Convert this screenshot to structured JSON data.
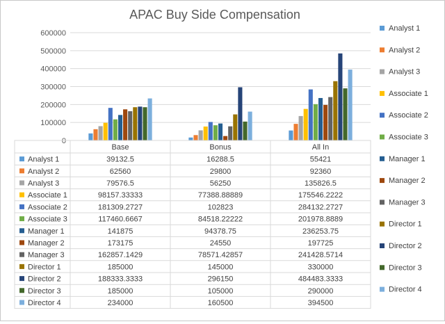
{
  "chart_data": {
    "type": "bar",
    "title": "APAC Buy Side Compensation",
    "categories": [
      "Base",
      "Bonus",
      "All In"
    ],
    "ylim": [
      0,
      600000
    ],
    "yticks": [
      0,
      100000,
      200000,
      300000,
      400000,
      500000,
      600000
    ],
    "grid": true,
    "legend_position": "right",
    "data_table": true,
    "series": [
      {
        "name": "Analyst 1",
        "color": "#5b9bd5",
        "values": [
          39132.5,
          16288.5,
          55421
        ],
        "labels": [
          "39132.5",
          "16288.5",
          "55421"
        ]
      },
      {
        "name": "Analyst 2",
        "color": "#ed7d31",
        "values": [
          62560,
          29800,
          92360
        ],
        "labels": [
          "62560",
          "29800",
          "92360"
        ]
      },
      {
        "name": "Analyst 3",
        "color": "#a5a5a5",
        "values": [
          79576.5,
          56250,
          135826.5
        ],
        "labels": [
          "79576.5",
          "56250",
          "135826.5"
        ]
      },
      {
        "name": "Associate 1",
        "color": "#ffc000",
        "values": [
          98157.33333,
          77388.88889,
          175546.2222
        ],
        "labels": [
          "98157.33333",
          "77388.88889",
          "175546.2222"
        ]
      },
      {
        "name": "Associate 2",
        "color": "#4472c4",
        "values": [
          181309.2727,
          102823,
          284132.2727
        ],
        "labels": [
          "181309.2727",
          "102823",
          "284132.2727"
        ]
      },
      {
        "name": "Associate 3",
        "color": "#70ad47",
        "values": [
          117460.6667,
          84518.22222,
          201978.8889
        ],
        "labels": [
          "117460.6667",
          "84518.22222",
          "201978.8889"
        ]
      },
      {
        "name": "Manager 1",
        "color": "#255e91",
        "values": [
          141875,
          94378.75,
          236253.75
        ],
        "labels": [
          "141875",
          "94378.75",
          "236253.75"
        ]
      },
      {
        "name": "Manager 2",
        "color": "#9e480e",
        "values": [
          173175,
          24550,
          197725
        ],
        "labels": [
          "173175",
          "24550",
          "197725"
        ]
      },
      {
        "name": "Manager 3",
        "color": "#636363",
        "values": [
          162857.1429,
          78571.42857,
          241428.5714
        ],
        "labels": [
          "162857.1429",
          "78571.42857",
          "241428.5714"
        ]
      },
      {
        "name": "Director 1",
        "color": "#997300",
        "values": [
          185000,
          145000,
          330000
        ],
        "labels": [
          "185000",
          "145000",
          "330000"
        ]
      },
      {
        "name": "Director 2",
        "color": "#264478",
        "values": [
          188333.3333,
          296150,
          484483.3333
        ],
        "labels": [
          "188333.3333",
          "296150",
          "484483.3333"
        ]
      },
      {
        "name": "Director 3",
        "color": "#43682b",
        "values": [
          185000,
          105000,
          290000
        ],
        "labels": [
          "185000",
          "105000",
          "290000"
        ]
      },
      {
        "name": "Director 4",
        "color": "#7cafdd",
        "values": [
          234000,
          160500,
          394500
        ],
        "labels": [
          "234000",
          "160500",
          "394500"
        ]
      }
    ]
  }
}
